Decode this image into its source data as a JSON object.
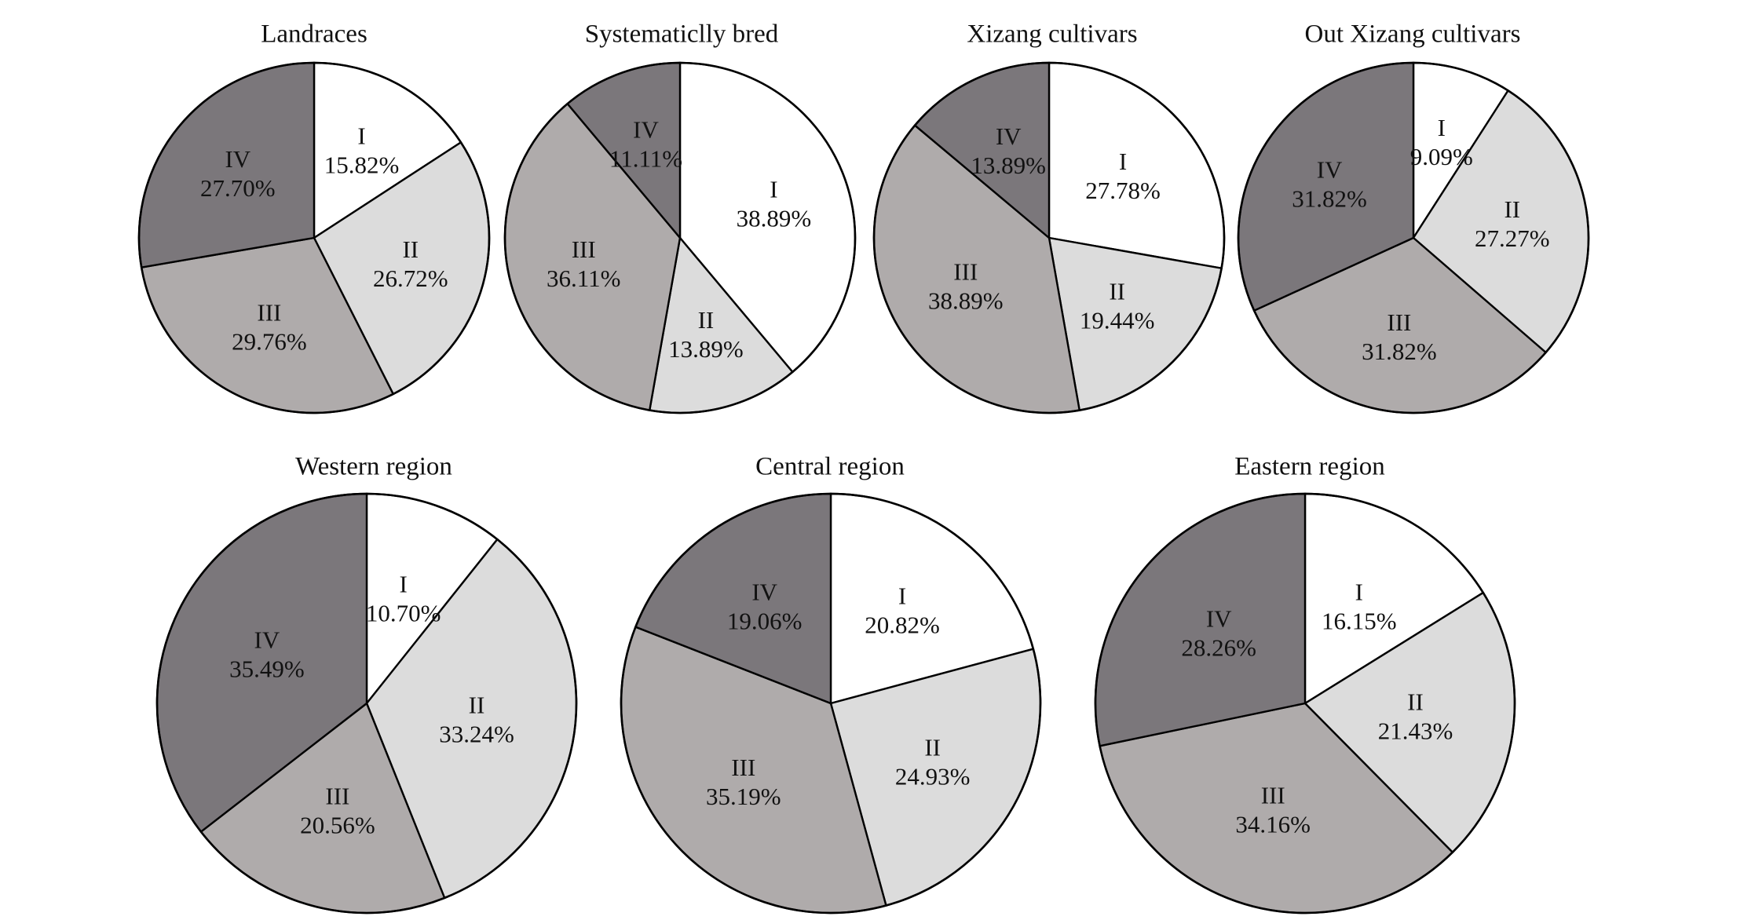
{
  "colors": {
    "I": "#ffffff",
    "II": "#dcdcdc",
    "III": "#afabab",
    "IV": "#7b777b",
    "stroke": "#000000",
    "text": "#111111"
  },
  "chart_data": [
    {
      "type": "pie",
      "title": "Landraces",
      "slices": [
        {
          "category": "I",
          "value": 15.82,
          "label": "15.82%"
        },
        {
          "category": "II",
          "value": 26.72,
          "label": "26.72%"
        },
        {
          "category": "III",
          "value": 29.76,
          "label": "29.76%"
        },
        {
          "category": "IV",
          "value": 27.7,
          "label": "27.70%"
        }
      ]
    },
    {
      "type": "pie",
      "title": "Systematiclly bred",
      "slices": [
        {
          "category": "I",
          "value": 38.89,
          "label": "38.89%"
        },
        {
          "category": "II",
          "value": 13.89,
          "label": "13.89%"
        },
        {
          "category": "III",
          "value": 36.11,
          "label": "36.11%"
        },
        {
          "category": "IV",
          "value": 11.11,
          "label": "11.11%"
        }
      ]
    },
    {
      "type": "pie",
      "title": "Xizang cultivars",
      "slices": [
        {
          "category": "I",
          "value": 27.78,
          "label": "27.78%"
        },
        {
          "category": "II",
          "value": 19.44,
          "label": "19.44%"
        },
        {
          "category": "III",
          "value": 38.89,
          "label": "38.89%"
        },
        {
          "category": "IV",
          "value": 13.89,
          "label": "13.89%"
        }
      ]
    },
    {
      "type": "pie",
      "title": "Out Xizang cultivars",
      "slices": [
        {
          "category": "I",
          "value": 9.09,
          "label": "9.09%"
        },
        {
          "category": "II",
          "value": 27.27,
          "label": "27.27%"
        },
        {
          "category": "III",
          "value": 31.82,
          "label": "31.82%"
        },
        {
          "category": "IV",
          "value": 31.82,
          "label": "31.82%"
        }
      ]
    },
    {
      "type": "pie",
      "title": "Western region",
      "slices": [
        {
          "category": "I",
          "value": 10.7,
          "label": "10.70%"
        },
        {
          "category": "II",
          "value": 33.24,
          "label": "33.24%"
        },
        {
          "category": "III",
          "value": 20.56,
          "label": "20.56%"
        },
        {
          "category": "IV",
          "value": 35.49,
          "label": "35.49%"
        }
      ]
    },
    {
      "type": "pie",
      "title": "Central region",
      "slices": [
        {
          "category": "I",
          "value": 20.82,
          "label": "20.82%"
        },
        {
          "category": "II",
          "value": 24.93,
          "label": "24.93%"
        },
        {
          "category": "III",
          "value": 35.19,
          "label": "35.19%"
        },
        {
          "category": "IV",
          "value": 19.06,
          "label": "19.06%"
        }
      ]
    },
    {
      "type": "pie",
      "title": "Eastern region",
      "slices": [
        {
          "category": "I",
          "value": 16.15,
          "label": "16.15%"
        },
        {
          "category": "II",
          "value": 21.43,
          "label": "21.43%"
        },
        {
          "category": "III",
          "value": 34.16,
          "label": "34.16%"
        },
        {
          "category": "IV",
          "value": 28.26,
          "label": "28.26%"
        }
      ]
    }
  ]
}
